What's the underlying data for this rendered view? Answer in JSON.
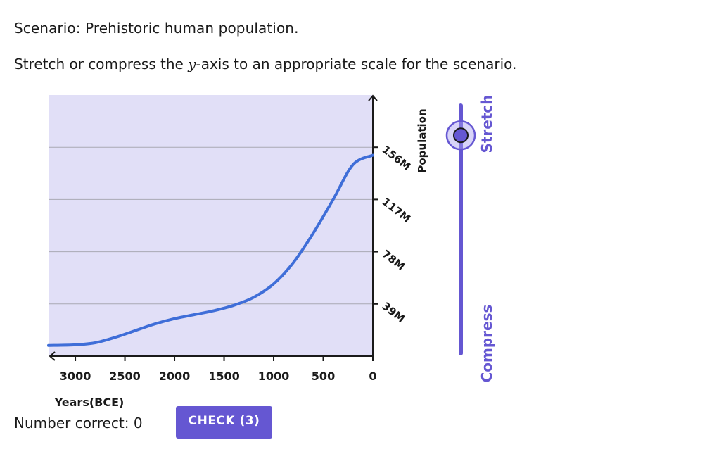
{
  "scenario": {
    "prefix": "Scenario:",
    "text": "Prehistoric human population."
  },
  "instruction": {
    "before": "Stretch or compress the ",
    "variable": "y",
    "after": "-axis to an appropriate scale for the scenario."
  },
  "chart_data": {
    "type": "line",
    "xlabel": "Years(BCE)",
    "ylabel": "Population",
    "x_ticks": [
      "3000",
      "2500",
      "2000",
      "1500",
      "1000",
      "500",
      "0"
    ],
    "y_ticks": [
      "156M",
      "117M",
      "78M",
      "39M"
    ],
    "ylim_millions": [
      0,
      195
    ],
    "xlim_years_bce": [
      3270,
      0
    ],
    "grid": true,
    "series": [
      {
        "x": [
          3270,
          3000,
          2800,
          2600,
          2400,
          2200,
          2000,
          1800,
          1600,
          1400,
          1200,
          1000,
          800,
          600,
          400,
          200,
          0
        ],
        "y": [
          8,
          8.5,
          10,
          14,
          19,
          24,
          28,
          31,
          34,
          38,
          44,
          54,
          70,
          92,
          117,
          143,
          150
        ],
        "color": "#3f6ed8"
      }
    ]
  },
  "slider": {
    "top_label": "Stretch",
    "bottom_label": "Compress",
    "level": 0.88,
    "color": "#6557d2"
  },
  "status": {
    "label": "Number correct:",
    "value": "0"
  },
  "check_button": {
    "label": "CHECK (3)"
  }
}
